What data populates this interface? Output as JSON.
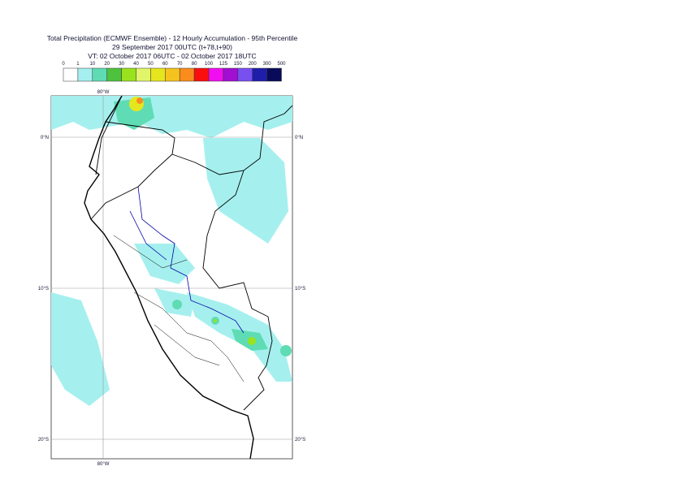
{
  "header": {
    "title_lines": [
      "Total Precipitation (ECMWF Ensemble) - 12 Hourly Accumulation - 95th Percentile",
      "29 September 2017 00UTC (t+78,t+90)",
      "VT: 02 October 2017 06UTC - 02 October 2017 18UTC"
    ]
  },
  "legend": {
    "labels": [
      "0",
      "1",
      "10",
      "20",
      "30",
      "40",
      "50",
      "60",
      "70",
      "80",
      "100",
      "125",
      "150",
      "200",
      "300",
      "500"
    ],
    "colors": [
      "#ffffff",
      "#a5f0ee",
      "#5fdcb4",
      "#4ec23c",
      "#9be21e",
      "#e0f56a",
      "#e6e61e",
      "#f5c31e",
      "#fa8c1e",
      "#fa0f0f",
      "#f00ff0",
      "#a00fd2",
      "#7850f0",
      "#1e1eaa",
      "#0a0a5a"
    ]
  },
  "map": {
    "lon_labels": [
      "80°W"
    ],
    "lat_labels": [
      "0°N",
      "10°S",
      "20°S"
    ]
  }
}
